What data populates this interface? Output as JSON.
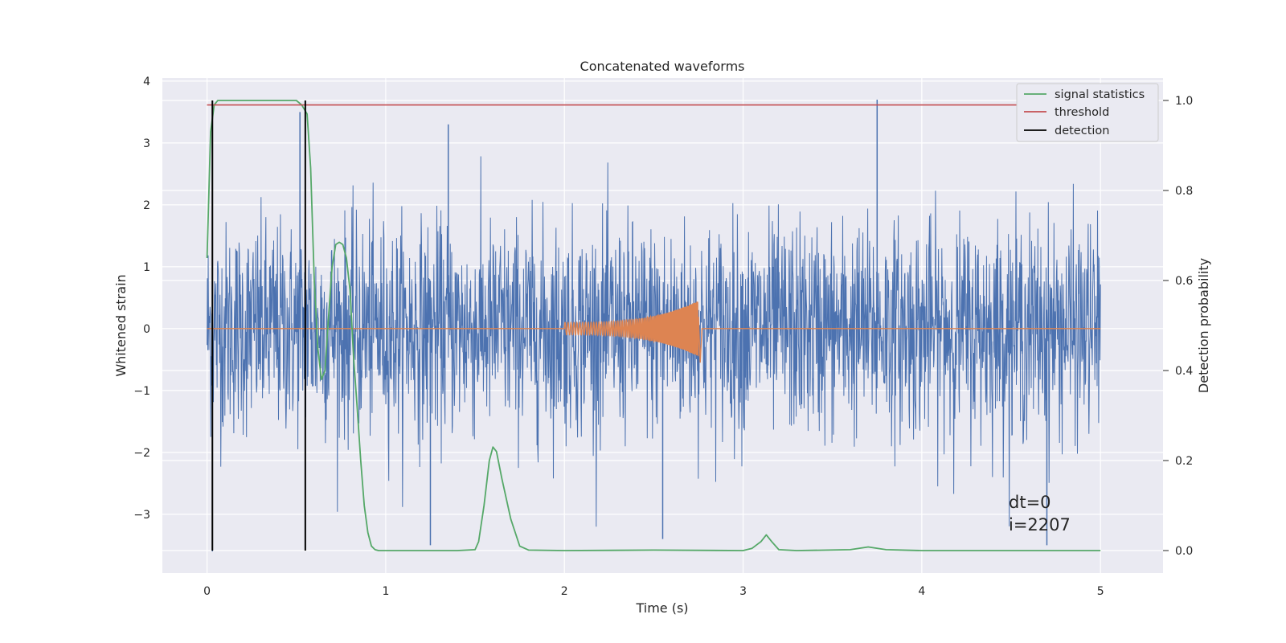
{
  "chart_data": {
    "type": "line",
    "title": "Concatenated waveforms",
    "xlabel": "Time (s)",
    "ylabel_left": "Whitened strain",
    "ylabel_right": "Detection probability",
    "xlim": [
      -0.25,
      5.35
    ],
    "ylim_left": [
      -3.95,
      4.05
    ],
    "ylim_right": [
      -0.05,
      1.05
    ],
    "x_ticks": [
      0,
      1,
      2,
      3,
      4,
      5
    ],
    "y_ticks_left": [
      -3,
      -2,
      -1,
      0,
      1,
      2,
      3,
      4
    ],
    "y_ticks_right": [
      0.0,
      0.2,
      0.4,
      0.6,
      0.8,
      1.0
    ],
    "x_tick_labels": [
      "0",
      "1",
      "2",
      "3",
      "4",
      "5"
    ],
    "y_tick_labels_left": [
      "−3",
      "−2",
      "−1",
      "0",
      "1",
      "2",
      "3",
      "4"
    ],
    "y_tick_labels_right": [
      "0.0",
      "0.2",
      "0.4",
      "0.6",
      "0.8",
      "1.0"
    ],
    "grid": true,
    "legend_position": "top-right",
    "legend": [
      "signal statistics",
      "threshold",
      "detection"
    ],
    "annotation": [
      "dt=0",
      "i=2207"
    ],
    "colors": {
      "background": "#eaeaf2",
      "grid": "#ffffff",
      "noise": "#4c72b0",
      "waveform": "#dd8452",
      "signal_statistics": "#55a868",
      "threshold": "#c44e52",
      "detection": "#000000"
    },
    "series": [
      {
        "name": "signal statistics",
        "axis": "right",
        "x": [
          0.0,
          0.02,
          0.04,
          0.06,
          0.08,
          0.1,
          0.2,
          0.3,
          0.4,
          0.5,
          0.53,
          0.56,
          0.58,
          0.6,
          0.62,
          0.64,
          0.66,
          0.68,
          0.7,
          0.72,
          0.74,
          0.76,
          0.78,
          0.8,
          0.82,
          0.84,
          0.86,
          0.88,
          0.9,
          0.92,
          0.94,
          0.96,
          1.0,
          1.2,
          1.4,
          1.5,
          1.52,
          1.55,
          1.58,
          1.6,
          1.62,
          1.65,
          1.7,
          1.75,
          1.8,
          2.0,
          2.5,
          3.0,
          3.05,
          3.1,
          3.13,
          3.16,
          3.2,
          3.3,
          3.6,
          3.7,
          3.8,
          4.0,
          4.5,
          5.0
        ],
        "y": [
          0.65,
          0.93,
          0.99,
          1.0,
          1.0,
          1.0,
          1.0,
          1.0,
          1.0,
          1.0,
          0.99,
          0.97,
          0.85,
          0.6,
          0.45,
          0.38,
          0.4,
          0.52,
          0.63,
          0.68,
          0.685,
          0.68,
          0.65,
          0.58,
          0.43,
          0.32,
          0.2,
          0.1,
          0.04,
          0.01,
          0.002,
          0.0,
          0.0,
          0.0,
          0.0,
          0.002,
          0.02,
          0.1,
          0.2,
          0.23,
          0.22,
          0.16,
          0.07,
          0.01,
          0.001,
          0.0,
          0.001,
          0.0,
          0.005,
          0.02,
          0.035,
          0.02,
          0.002,
          0.0,
          0.002,
          0.008,
          0.002,
          0.0,
          0.0,
          0.0
        ]
      },
      {
        "name": "threshold",
        "axis": "right",
        "x": [
          0.0,
          5.0
        ],
        "y": [
          0.99,
          0.99
        ]
      },
      {
        "name": "detection",
        "axis": "right",
        "x": [
          0.03,
          0.55
        ],
        "y_range": [
          0.0,
          1.0
        ]
      },
      {
        "axis": "left",
        "x_range": [
          0.0,
          5.0
        ],
        "amplitude_std": 1.0,
        "spikes": [
          {
            "x": 0.03,
            "y": -3.6
          },
          {
            "x": 0.52,
            "y": 3.5
          },
          {
            "x": 1.25,
            "y": -3.5
          },
          {
            "x": 1.35,
            "y": 3.3
          },
          {
            "x": 2.55,
            "y": -3.4
          },
          {
            "x": 3.75,
            "y": 3.7
          },
          {
            "x": 4.7,
            "y": -3.5
          }
        ]
      },
      {
        "axis": "left",
        "chirp_start": 2.0,
        "chirp_end": 2.75,
        "amp_start": 0.1,
        "amp_end": 0.45
      }
    ]
  }
}
